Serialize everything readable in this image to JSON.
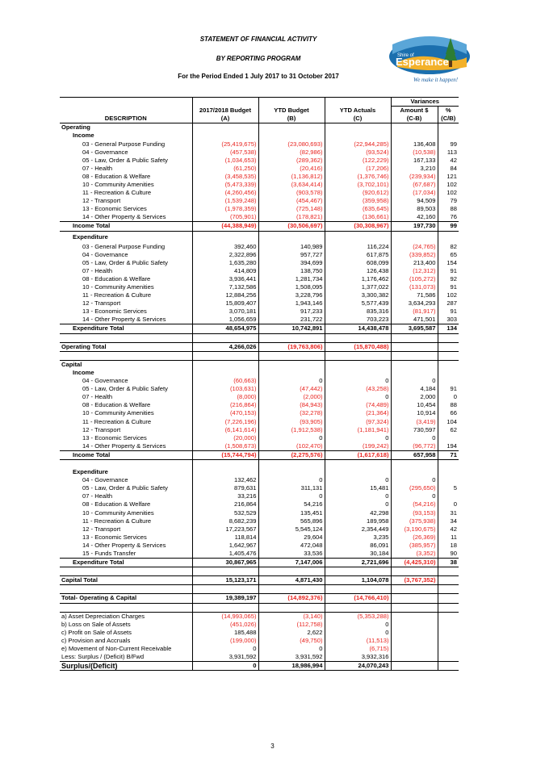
{
  "header": {
    "title": "STATEMENT OF FINANCIAL ACTIVITY",
    "subtitle": "BY REPORTING PROGRAM",
    "period": "For the Period Ended 1 July 2017 to 31 October 2017"
  },
  "logo": {
    "top_text": "Shire of",
    "name": "Esperance",
    "tagline": "We make it happen!"
  },
  "columns": {
    "variances": "Variances",
    "budget": "2017/2018 Budget",
    "budget_sub": "(A)",
    "ytd_budget": "YTD Budget",
    "ytd_budget_sub": "(B)",
    "ytd_actuals": "YTD Actuals",
    "ytd_actuals_sub": "(C)",
    "amount": "Amount $",
    "amount_sub": "(C-B)",
    "pct": "%",
    "pct_sub": "(C/B)",
    "description": "DESCRIPTION"
  },
  "rows": [
    {
      "t": "sec",
      "label": "Operating",
      "topline": true
    },
    {
      "t": "sub",
      "label": "Income"
    },
    {
      "t": "item",
      "label": "03 - General Purpose Funding",
      "v": [
        "(25,419,675)",
        "(23,080,693)",
        "(22,944,285)",
        "136,408",
        "99"
      ]
    },
    {
      "t": "item",
      "label": "04 - Governance",
      "v": [
        "(457,538)",
        "(82,986)",
        "(93,524)",
        "(10,538)",
        "113"
      ]
    },
    {
      "t": "item",
      "label": "05 - Law, Order & Public Safety",
      "v": [
        "(1,034,653)",
        "(289,362)",
        "(122,229)",
        "167,133",
        "42"
      ]
    },
    {
      "t": "item",
      "label": "07 - Health",
      "v": [
        "(61,250)",
        "(20,416)",
        "(17,206)",
        "3,210",
        "84"
      ]
    },
    {
      "t": "item",
      "label": "08 - Education & Welfare",
      "v": [
        "(3,458,535)",
        "(1,136,812)",
        "(1,376,746)",
        "(239,934)",
        "121"
      ]
    },
    {
      "t": "item",
      "label": "10 - Community Amenities",
      "v": [
        "(5,473,339)",
        "(3,634,414)",
        "(3,702,101)",
        "(67,687)",
        "102"
      ]
    },
    {
      "t": "item",
      "label": "11 - Recreation & Culture",
      "v": [
        "(4,260,456)",
        "(903,578)",
        "(920,612)",
        "(17,034)",
        "102"
      ]
    },
    {
      "t": "item",
      "label": "12 - Transport",
      "v": [
        "(1,539,248)",
        "(454,467)",
        "(359,958)",
        "94,509",
        "79"
      ]
    },
    {
      "t": "item",
      "label": "13 - Economic Services",
      "v": [
        "(1,978,359)",
        "(725,148)",
        "(635,645)",
        "89,503",
        "88"
      ]
    },
    {
      "t": "item",
      "label": "14 - Other Property & Services",
      "v": [
        "(705,901)",
        "(178,821)",
        "(136,661)",
        "42,160",
        "76"
      ]
    },
    {
      "t": "total",
      "label": "Income Total",
      "v": [
        "(44,388,949)",
        "(30,506,697)",
        "(30,308,967)",
        "197,730",
        "99"
      ]
    },
    {
      "t": "sub",
      "label": "Expenditure",
      "gap": true
    },
    {
      "t": "item",
      "label": "03 - General Purpose Funding",
      "v": [
        "392,460",
        "140,989",
        "116,224",
        "(24,765)",
        "82"
      ]
    },
    {
      "t": "item",
      "label": "04 - Governance",
      "v": [
        "2,322,896",
        "957,727",
        "617,875",
        "(339,852)",
        "65"
      ]
    },
    {
      "t": "item",
      "label": "05 - Law, Order & Public Safety",
      "v": [
        "1,635,280",
        "394,699",
        "608,099",
        "213,400",
        "154"
      ]
    },
    {
      "t": "item",
      "label": "07 - Health",
      "v": [
        "414,809",
        "138,750",
        "126,438",
        "(12,312)",
        "91"
      ]
    },
    {
      "t": "item",
      "label": "08 - Education & Welfare",
      "v": [
        "3,936,441",
        "1,281,734",
        "1,176,462",
        "(105,272)",
        "92"
      ]
    },
    {
      "t": "item",
      "label": "10 - Community Amenities",
      "v": [
        "7,132,586",
        "1,508,095",
        "1,377,022",
        "(131,073)",
        "91"
      ]
    },
    {
      "t": "item",
      "label": "11 - Recreation & Culture",
      "v": [
        "12,884,256",
        "3,228,796",
        "3,300,382",
        "71,586",
        "102"
      ]
    },
    {
      "t": "item",
      "label": "12 - Transport",
      "v": [
        "15,809,407",
        "1,943,146",
        "5,577,439",
        "3,634,293",
        "287"
      ]
    },
    {
      "t": "item",
      "label": "13 - Economic Services",
      "v": [
        "3,070,181",
        "917,233",
        "835,316",
        "(81,917)",
        "91"
      ]
    },
    {
      "t": "item",
      "label": "14 - Other Property & Services",
      "v": [
        "1,056,659",
        "231,722",
        "703,223",
        "471,501",
        "303"
      ]
    },
    {
      "t": "total",
      "label": "Expenditure Total",
      "v": [
        "48,654,975",
        "10,742,891",
        "14,438,478",
        "3,695,587",
        "134"
      ]
    },
    {
      "t": "blank"
    },
    {
      "t": "grand",
      "label": "Operating Total",
      "v": [
        "4,266,026",
        "(19,763,806)",
        "(15,870,488)",
        "",
        ""
      ]
    },
    {
      "t": "blank"
    },
    {
      "t": "sec",
      "label": "Capital",
      "topline": true
    },
    {
      "t": "sub",
      "label": "Income"
    },
    {
      "t": "item",
      "label": "04 - Governance",
      "v": [
        "(60,663)",
        "0",
        "0",
        "0",
        ""
      ]
    },
    {
      "t": "item",
      "label": "05 - Law, Order & Public Safety",
      "v": [
        "(103,631)",
        "(47,442)",
        "(43,258)",
        "4,184",
        "91"
      ]
    },
    {
      "t": "item",
      "label": "07 - Health",
      "v": [
        "(8,000)",
        "(2,000)",
        "0",
        "2,000",
        "0"
      ]
    },
    {
      "t": "item",
      "label": "08 - Education & Welfare",
      "v": [
        "(216,864)",
        "(84,943)",
        "(74,489)",
        "10,454",
        "88"
      ]
    },
    {
      "t": "item",
      "label": "10 - Community Amenities",
      "v": [
        "(470,153)",
        "(32,278)",
        "(21,364)",
        "10,914",
        "66"
      ]
    },
    {
      "t": "item",
      "label": "11 - Recreation & Culture",
      "v": [
        "(7,226,196)",
        "(93,905)",
        "(97,324)",
        "(3,419)",
        "104"
      ]
    },
    {
      "t": "item",
      "label": "12 - Transport",
      "v": [
        "(6,141,614)",
        "(1,912,538)",
        "(1,181,941)",
        "730,597",
        "62"
      ]
    },
    {
      "t": "item",
      "label": "13 - Economic Services",
      "v": [
        "(20,000)",
        "0",
        "0",
        "0",
        ""
      ]
    },
    {
      "t": "item",
      "label": "14 - Other Property & Services",
      "v": [
        "(1,508,673)",
        "(102,470)",
        "(199,242)",
        "(96,772)",
        "194"
      ]
    },
    {
      "t": "total",
      "label": "Income Total",
      "v": [
        "(15,744,794)",
        "(2,275,576)",
        "(1,617,618)",
        "657,958",
        "71"
      ]
    },
    {
      "t": "blank"
    },
    {
      "t": "sub",
      "label": "Expenditure"
    },
    {
      "t": "item",
      "label": "04 - Governance",
      "v": [
        "132,462",
        "0",
        "0",
        "0",
        ""
      ]
    },
    {
      "t": "item",
      "label": "05 - Law, Order & Public Safety",
      "v": [
        "879,631",
        "311,131",
        "15,481",
        "(295,650)",
        "5"
      ]
    },
    {
      "t": "item",
      "label": "07 - Health",
      "v": [
        "33,216",
        "0",
        "0",
        "0",
        ""
      ]
    },
    {
      "t": "item",
      "label": "08 - Education & Welfare",
      "v": [
        "216,864",
        "54,216",
        "0",
        "(54,216)",
        "0"
      ]
    },
    {
      "t": "item",
      "label": "10 - Community Amenities",
      "v": [
        "532,529",
        "135,451",
        "42,298",
        "(93,153)",
        "31"
      ]
    },
    {
      "t": "item",
      "label": "11 - Recreation & Culture",
      "v": [
        "8,682,239",
        "565,896",
        "189,958",
        "(375,938)",
        "34"
      ]
    },
    {
      "t": "item",
      "label": "12 - Transport",
      "v": [
        "17,223,567",
        "5,545,124",
        "2,354,449",
        "(3,190,675)",
        "42"
      ]
    },
    {
      "t": "item",
      "label": "13 - Economic Services",
      "v": [
        "118,814",
        "29,604",
        "3,235",
        "(26,369)",
        "11"
      ]
    },
    {
      "t": "item",
      "label": "14 - Other Property & Services",
      "v": [
        "1,642,967",
        "472,048",
        "86,091",
        "(385,957)",
        "18"
      ]
    },
    {
      "t": "item",
      "label": "15 - Funds Transfer",
      "v": [
        "1,405,476",
        "33,536",
        "30,184",
        "(3,352)",
        "90"
      ]
    },
    {
      "t": "total",
      "label": "Expenditure Total",
      "v": [
        "30,867,965",
        "7,147,006",
        "2,721,696",
        "(4,425,310)",
        "38"
      ]
    },
    {
      "t": "blank"
    },
    {
      "t": "grand",
      "label": "Capital Total",
      "v": [
        "15,123,171",
        "4,871,430",
        "1,104,078",
        "(3,767,352)",
        ""
      ]
    },
    {
      "t": "blank"
    },
    {
      "t": "grand",
      "label": "Total- Operating & Capital",
      "v": [
        "19,389,197",
        "(14,892,376)",
        "(14,766,410)",
        "",
        ""
      ]
    },
    {
      "t": "blank"
    },
    {
      "t": "adj",
      "label": "a) Asset Depreciation Charges",
      "v": [
        "(14,993,065)",
        "(3,140)",
        "(5,353,288)",
        "",
        ""
      ],
      "topline": true
    },
    {
      "t": "adj",
      "label": "b) Loss on Sale of Assets",
      "v": [
        "(451,026)",
        "(112,758)",
        "0",
        "",
        ""
      ]
    },
    {
      "t": "adj",
      "label": "c) Profit on Sale of Assets",
      "v": [
        "185,488",
        "2,622",
        "0",
        "",
        ""
      ]
    },
    {
      "t": "adj",
      "label": "c) Provision and Accruals",
      "v": [
        "(199,000)",
        "(49,750)",
        "(11,513)",
        "",
        ""
      ]
    },
    {
      "t": "adj",
      "label": "e) Movement of Non-Current Receivable",
      "v": [
        "0",
        "0",
        "(6,715)",
        "",
        ""
      ]
    },
    {
      "t": "adj",
      "label": "Less: Surplus / (Deficit) B/Fwd",
      "v": [
        "3,931,592",
        "3,931,592",
        "3,932,316",
        "",
        ""
      ]
    },
    {
      "t": "final",
      "label": "Surplus/(Deficit)",
      "v": [
        "0",
        "18,986,994",
        "24,070,243",
        "",
        ""
      ]
    }
  ],
  "footer": {
    "page": "3"
  }
}
